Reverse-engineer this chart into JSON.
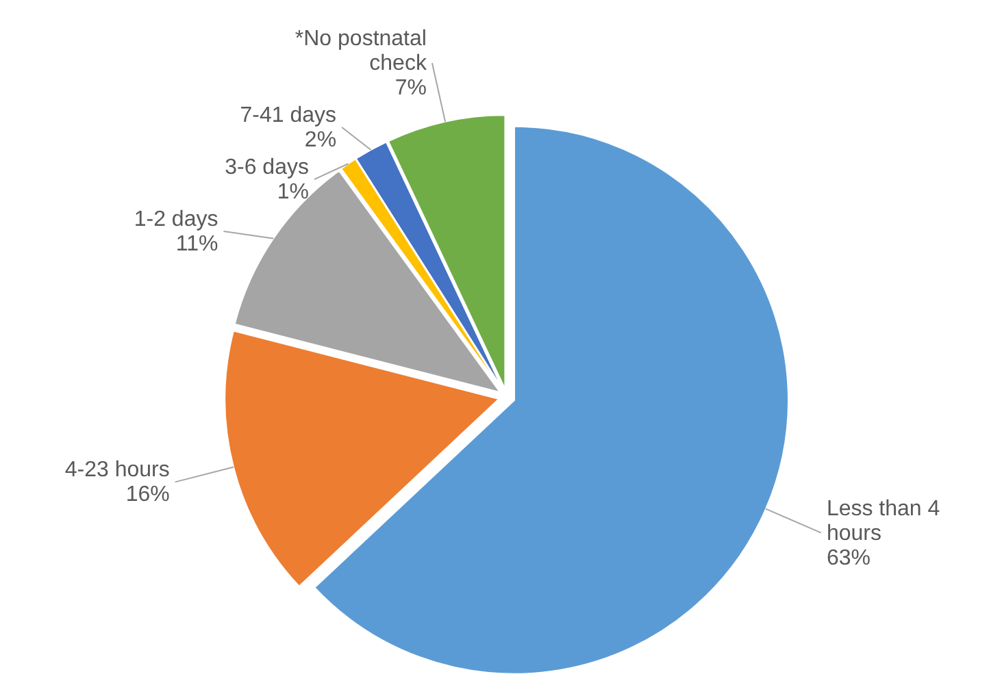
{
  "chart_data": {
    "type": "pie",
    "categories": [
      "Less than 4 hours",
      "4-23 hours",
      "1-2 days",
      "3-6 days",
      "7-41 days",
      "*No postnatal check"
    ],
    "values": [
      63,
      16,
      11,
      1,
      2,
      7
    ],
    "value_labels": [
      "63%",
      "16%",
      "11%",
      "1%",
      "2%",
      "7%"
    ],
    "colors": [
      "#5b9bd5",
      "#ed7d31",
      "#a5a5a5",
      "#ffc000",
      "#4472c4",
      "#70ad47"
    ]
  }
}
